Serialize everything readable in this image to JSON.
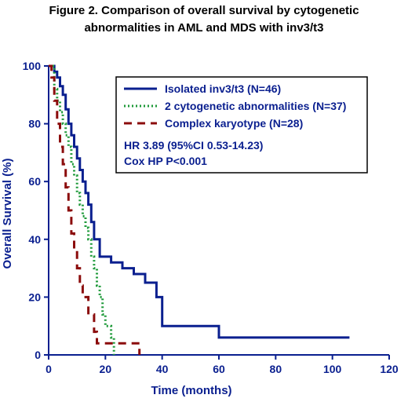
{
  "chart_data": {
    "type": "line",
    "title_lines": [
      "Figure 2. Comparison of overall survival by cytogenetic",
      "abnormalities in AML and MDS with inv3/t3"
    ],
    "xlabel": "Time (months)",
    "ylabel": "Overall Survival (%)",
    "xlim": [
      0,
      120
    ],
    "ylim": [
      0,
      100
    ],
    "xticks": [
      "0",
      "20",
      "40",
      "60",
      "80",
      "100",
      "120"
    ],
    "yticks": [
      "0",
      "20",
      "40",
      "60",
      "80",
      "100"
    ],
    "grid": false,
    "legend_position": "top-right",
    "series": [
      {
        "name": "Isolated inv3/t3 (N=46)",
        "color": "#0a1f8f",
        "dash": "solid",
        "x": [
          0,
          2,
          3,
          4,
          5,
          6,
          7,
          8,
          9,
          10,
          11,
          12,
          13,
          14,
          15,
          16,
          18,
          22,
          26,
          30,
          34,
          38,
          40,
          60,
          106
        ],
        "y": [
          100,
          98,
          96,
          93,
          90,
          85,
          80,
          76,
          72,
          68,
          64,
          60,
          56,
          52,
          46,
          40,
          34,
          32,
          30,
          28,
          25,
          20,
          10,
          6,
          6
        ]
      },
      {
        "name": "2 cytogenetic abnormalities (N=37)",
        "color": "#1f9a3a",
        "dash": "dotted",
        "x": [
          0,
          2,
          3,
          4,
          5,
          6,
          7,
          8,
          9,
          10,
          11,
          12,
          13,
          14,
          15,
          16,
          17,
          18,
          19,
          20,
          22,
          23
        ],
        "y": [
          100,
          92,
          88,
          84,
          80,
          76,
          72,
          66,
          62,
          56,
          52,
          48,
          44,
          40,
          34,
          30,
          24,
          20,
          14,
          10,
          6,
          0
        ]
      },
      {
        "name": "Complex karyotype (N=28)",
        "color": "#8b0c0c",
        "dash": "dashed",
        "x": [
          0,
          1,
          2,
          3,
          4,
          5,
          6,
          7,
          8,
          9,
          10,
          11,
          12,
          14,
          16,
          17,
          22,
          32
        ],
        "y": [
          100,
          96,
          88,
          80,
          72,
          66,
          58,
          50,
          42,
          36,
          30,
          24,
          20,
          14,
          8,
          4,
          4,
          0
        ]
      }
    ],
    "annotations": [
      "HR 3.89 (95%CI 0.53-14.23)",
      "Cox HP P<0.001"
    ]
  }
}
